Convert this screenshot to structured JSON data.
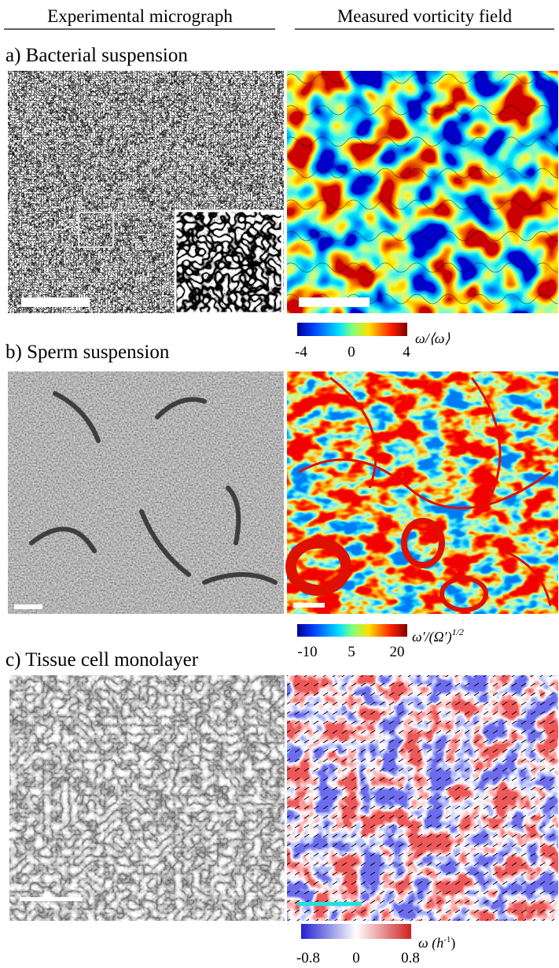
{
  "columns": [
    "Experimental micrograph",
    "Measured vorticity field"
  ],
  "panels": [
    {
      "label": "a) Bacterial suspension",
      "colorbar": {
        "ticks": [
          "-4",
          "0",
          "4"
        ],
        "label": "ω/⟨ω⟩",
        "label_sup": ""
      }
    },
    {
      "label": "b) Sperm suspension",
      "colorbar": {
        "ticks": [
          "-10",
          "5",
          "20"
        ],
        "label": "ω′/(Ω′)",
        "label_sup": "1/2"
      }
    },
    {
      "label": "c) Tissue cell monolayer",
      "colorbar": {
        "ticks": [
          "-0.8",
          "0",
          "0.8"
        ],
        "label": "ω (h",
        "label_sup": "-1",
        "label_end": ")"
      }
    }
  ]
}
